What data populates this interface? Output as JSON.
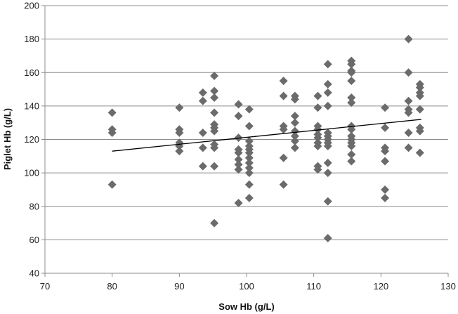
{
  "colors": {
    "marker": "#6b6b6b",
    "trendline": "#000000",
    "gridline": "#8c8c8c",
    "axis": "#8c8c8c"
  },
  "chart_data": {
    "type": "scatter",
    "title": "",
    "xlabel": "Sow Hb (g/L)",
    "ylabel": "Piglet Hb (g/L)",
    "xlim": [
      70,
      130
    ],
    "ylim": [
      40,
      200
    ],
    "xticks": [
      70,
      80,
      90,
      100,
      110,
      120,
      130
    ],
    "yticks": [
      40,
      60,
      80,
      100,
      120,
      140,
      160,
      180,
      200
    ],
    "grid": "horizontal",
    "legend": "none",
    "marker": "diamond",
    "trendline": {
      "x": [
        80,
        126
      ],
      "y": [
        113,
        132
      ]
    },
    "points": [
      {
        "x": 80,
        "y": 136
      },
      {
        "x": 80,
        "y": 126
      },
      {
        "x": 80,
        "y": 124
      },
      {
        "x": 80,
        "y": 93
      },
      {
        "x": 90,
        "y": 139
      },
      {
        "x": 90,
        "y": 126
      },
      {
        "x": 90,
        "y": 124
      },
      {
        "x": 90,
        "y": 118
      },
      {
        "x": 90,
        "y": 116
      },
      {
        "x": 90,
        "y": 113
      },
      {
        "x": 93.5,
        "y": 148
      },
      {
        "x": 93.5,
        "y": 143
      },
      {
        "x": 93.5,
        "y": 124
      },
      {
        "x": 93.5,
        "y": 115
      },
      {
        "x": 93.5,
        "y": 104
      },
      {
        "x": 95.2,
        "y": 158
      },
      {
        "x": 95.2,
        "y": 149
      },
      {
        "x": 95.2,
        "y": 145
      },
      {
        "x": 95.2,
        "y": 136
      },
      {
        "x": 95.2,
        "y": 129
      },
      {
        "x": 95.2,
        "y": 127
      },
      {
        "x": 95.2,
        "y": 125
      },
      {
        "x": 95.2,
        "y": 117
      },
      {
        "x": 95.2,
        "y": 115
      },
      {
        "x": 95.2,
        "y": 104
      },
      {
        "x": 95.2,
        "y": 70
      },
      {
        "x": 98.8,
        "y": 141
      },
      {
        "x": 98.8,
        "y": 134
      },
      {
        "x": 98.8,
        "y": 121
      },
      {
        "x": 98.8,
        "y": 114
      },
      {
        "x": 98.8,
        "y": 112
      },
      {
        "x": 98.8,
        "y": 108
      },
      {
        "x": 98.8,
        "y": 105
      },
      {
        "x": 98.8,
        "y": 102
      },
      {
        "x": 98.8,
        "y": 82
      },
      {
        "x": 100.4,
        "y": 138
      },
      {
        "x": 100.4,
        "y": 128
      },
      {
        "x": 100.4,
        "y": 119
      },
      {
        "x": 100.4,
        "y": 116
      },
      {
        "x": 100.4,
        "y": 114
      },
      {
        "x": 100.4,
        "y": 112
      },
      {
        "x": 100.4,
        "y": 109
      },
      {
        "x": 100.4,
        "y": 106
      },
      {
        "x": 100.4,
        "y": 103
      },
      {
        "x": 100.4,
        "y": 100
      },
      {
        "x": 100.4,
        "y": 93
      },
      {
        "x": 100.4,
        "y": 85
      },
      {
        "x": 105.5,
        "y": 155
      },
      {
        "x": 105.5,
        "y": 146
      },
      {
        "x": 105.5,
        "y": 128
      },
      {
        "x": 105.5,
        "y": 126
      },
      {
        "x": 105.5,
        "y": 109
      },
      {
        "x": 105.5,
        "y": 93
      },
      {
        "x": 107.2,
        "y": 146
      },
      {
        "x": 107.2,
        "y": 144
      },
      {
        "x": 107.2,
        "y": 134
      },
      {
        "x": 107.2,
        "y": 130
      },
      {
        "x": 107.2,
        "y": 125
      },
      {
        "x": 107.2,
        "y": 122
      },
      {
        "x": 107.2,
        "y": 119
      },
      {
        "x": 107.2,
        "y": 115
      },
      {
        "x": 110.6,
        "y": 146
      },
      {
        "x": 110.6,
        "y": 139
      },
      {
        "x": 110.6,
        "y": 128
      },
      {
        "x": 110.6,
        "y": 126
      },
      {
        "x": 110.6,
        "y": 123
      },
      {
        "x": 110.6,
        "y": 121
      },
      {
        "x": 110.6,
        "y": 118
      },
      {
        "x": 110.6,
        "y": 116
      },
      {
        "x": 110.6,
        "y": 104
      },
      {
        "x": 110.6,
        "y": 102
      },
      {
        "x": 112.1,
        "y": 165
      },
      {
        "x": 112.1,
        "y": 153
      },
      {
        "x": 112.1,
        "y": 148
      },
      {
        "x": 112.1,
        "y": 140
      },
      {
        "x": 112.1,
        "y": 124
      },
      {
        "x": 112.1,
        "y": 122
      },
      {
        "x": 112.1,
        "y": 120
      },
      {
        "x": 112.1,
        "y": 118
      },
      {
        "x": 112.1,
        "y": 116
      },
      {
        "x": 112.1,
        "y": 106
      },
      {
        "x": 112.1,
        "y": 100
      },
      {
        "x": 112.1,
        "y": 83
      },
      {
        "x": 112.1,
        "y": 61
      },
      {
        "x": 115.6,
        "y": 167
      },
      {
        "x": 115.6,
        "y": 165
      },
      {
        "x": 115.6,
        "y": 161
      },
      {
        "x": 115.6,
        "y": 160
      },
      {
        "x": 115.6,
        "y": 155
      },
      {
        "x": 115.6,
        "y": 145
      },
      {
        "x": 115.6,
        "y": 142
      },
      {
        "x": 115.6,
        "y": 128
      },
      {
        "x": 115.6,
        "y": 126
      },
      {
        "x": 115.6,
        "y": 122
      },
      {
        "x": 115.6,
        "y": 120
      },
      {
        "x": 115.6,
        "y": 118
      },
      {
        "x": 115.6,
        "y": 116
      },
      {
        "x": 115.6,
        "y": 111
      },
      {
        "x": 115.6,
        "y": 107
      },
      {
        "x": 120.6,
        "y": 139
      },
      {
        "x": 120.6,
        "y": 127
      },
      {
        "x": 120.6,
        "y": 115
      },
      {
        "x": 120.6,
        "y": 113
      },
      {
        "x": 120.6,
        "y": 107
      },
      {
        "x": 120.6,
        "y": 90
      },
      {
        "x": 120.6,
        "y": 85
      },
      {
        "x": 124.1,
        "y": 180
      },
      {
        "x": 124.1,
        "y": 160
      },
      {
        "x": 124.1,
        "y": 143
      },
      {
        "x": 124.1,
        "y": 138
      },
      {
        "x": 124.1,
        "y": 136
      },
      {
        "x": 124.1,
        "y": 124
      },
      {
        "x": 124.1,
        "y": 115
      },
      {
        "x": 125.8,
        "y": 153
      },
      {
        "x": 125.8,
        "y": 151
      },
      {
        "x": 125.8,
        "y": 148
      },
      {
        "x": 125.8,
        "y": 146
      },
      {
        "x": 125.8,
        "y": 138
      },
      {
        "x": 125.8,
        "y": 127
      },
      {
        "x": 125.8,
        "y": 125
      },
      {
        "x": 125.8,
        "y": 112
      }
    ]
  }
}
